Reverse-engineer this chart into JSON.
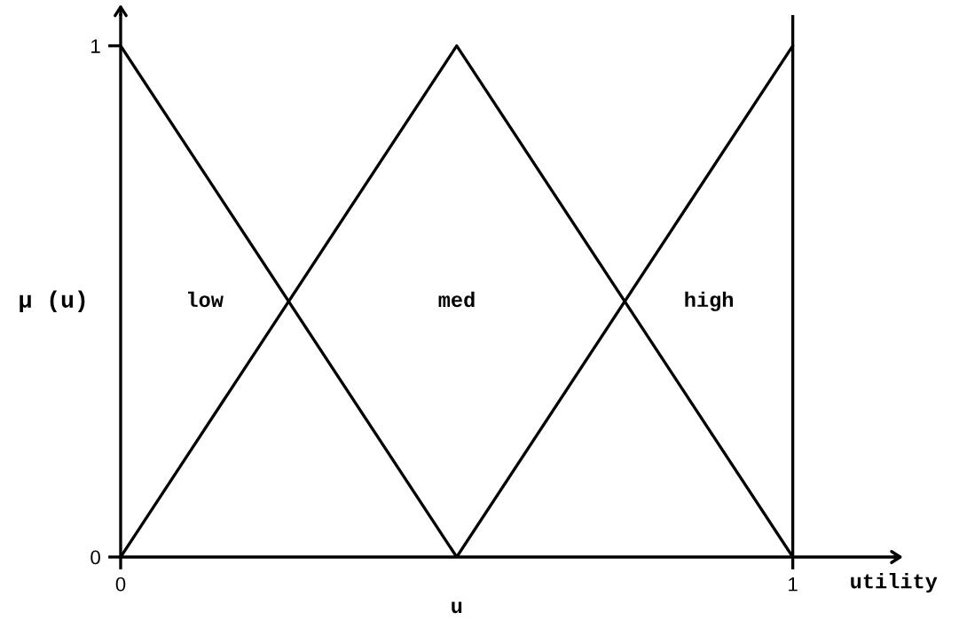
{
  "chart_data": {
    "type": "line",
    "xlabel": "u",
    "ylabel": "μ (u)",
    "annotations": [
      "low",
      "med",
      "high",
      "utility"
    ],
    "xlim": [
      0,
      1.15
    ],
    "ylim": [
      0,
      1.06
    ],
    "xticks": [
      0,
      1
    ],
    "yticks": [
      0,
      1
    ],
    "line_style": "solid",
    "ref_lines": [
      {
        "axis": "x",
        "value": 1,
        "color": "#000000"
      }
    ],
    "series": [
      {
        "color": "#000000",
        "x": [
          0,
          0.5
        ],
        "values": [
          1,
          0
        ]
      },
      {
        "color": "#000000",
        "x": [
          0,
          0.5,
          1
        ],
        "values": [
          0,
          1,
          0
        ]
      },
      {
        "color": "#000000",
        "x": [
          0.5,
          1
        ],
        "values": [
          0,
          1
        ]
      }
    ]
  }
}
